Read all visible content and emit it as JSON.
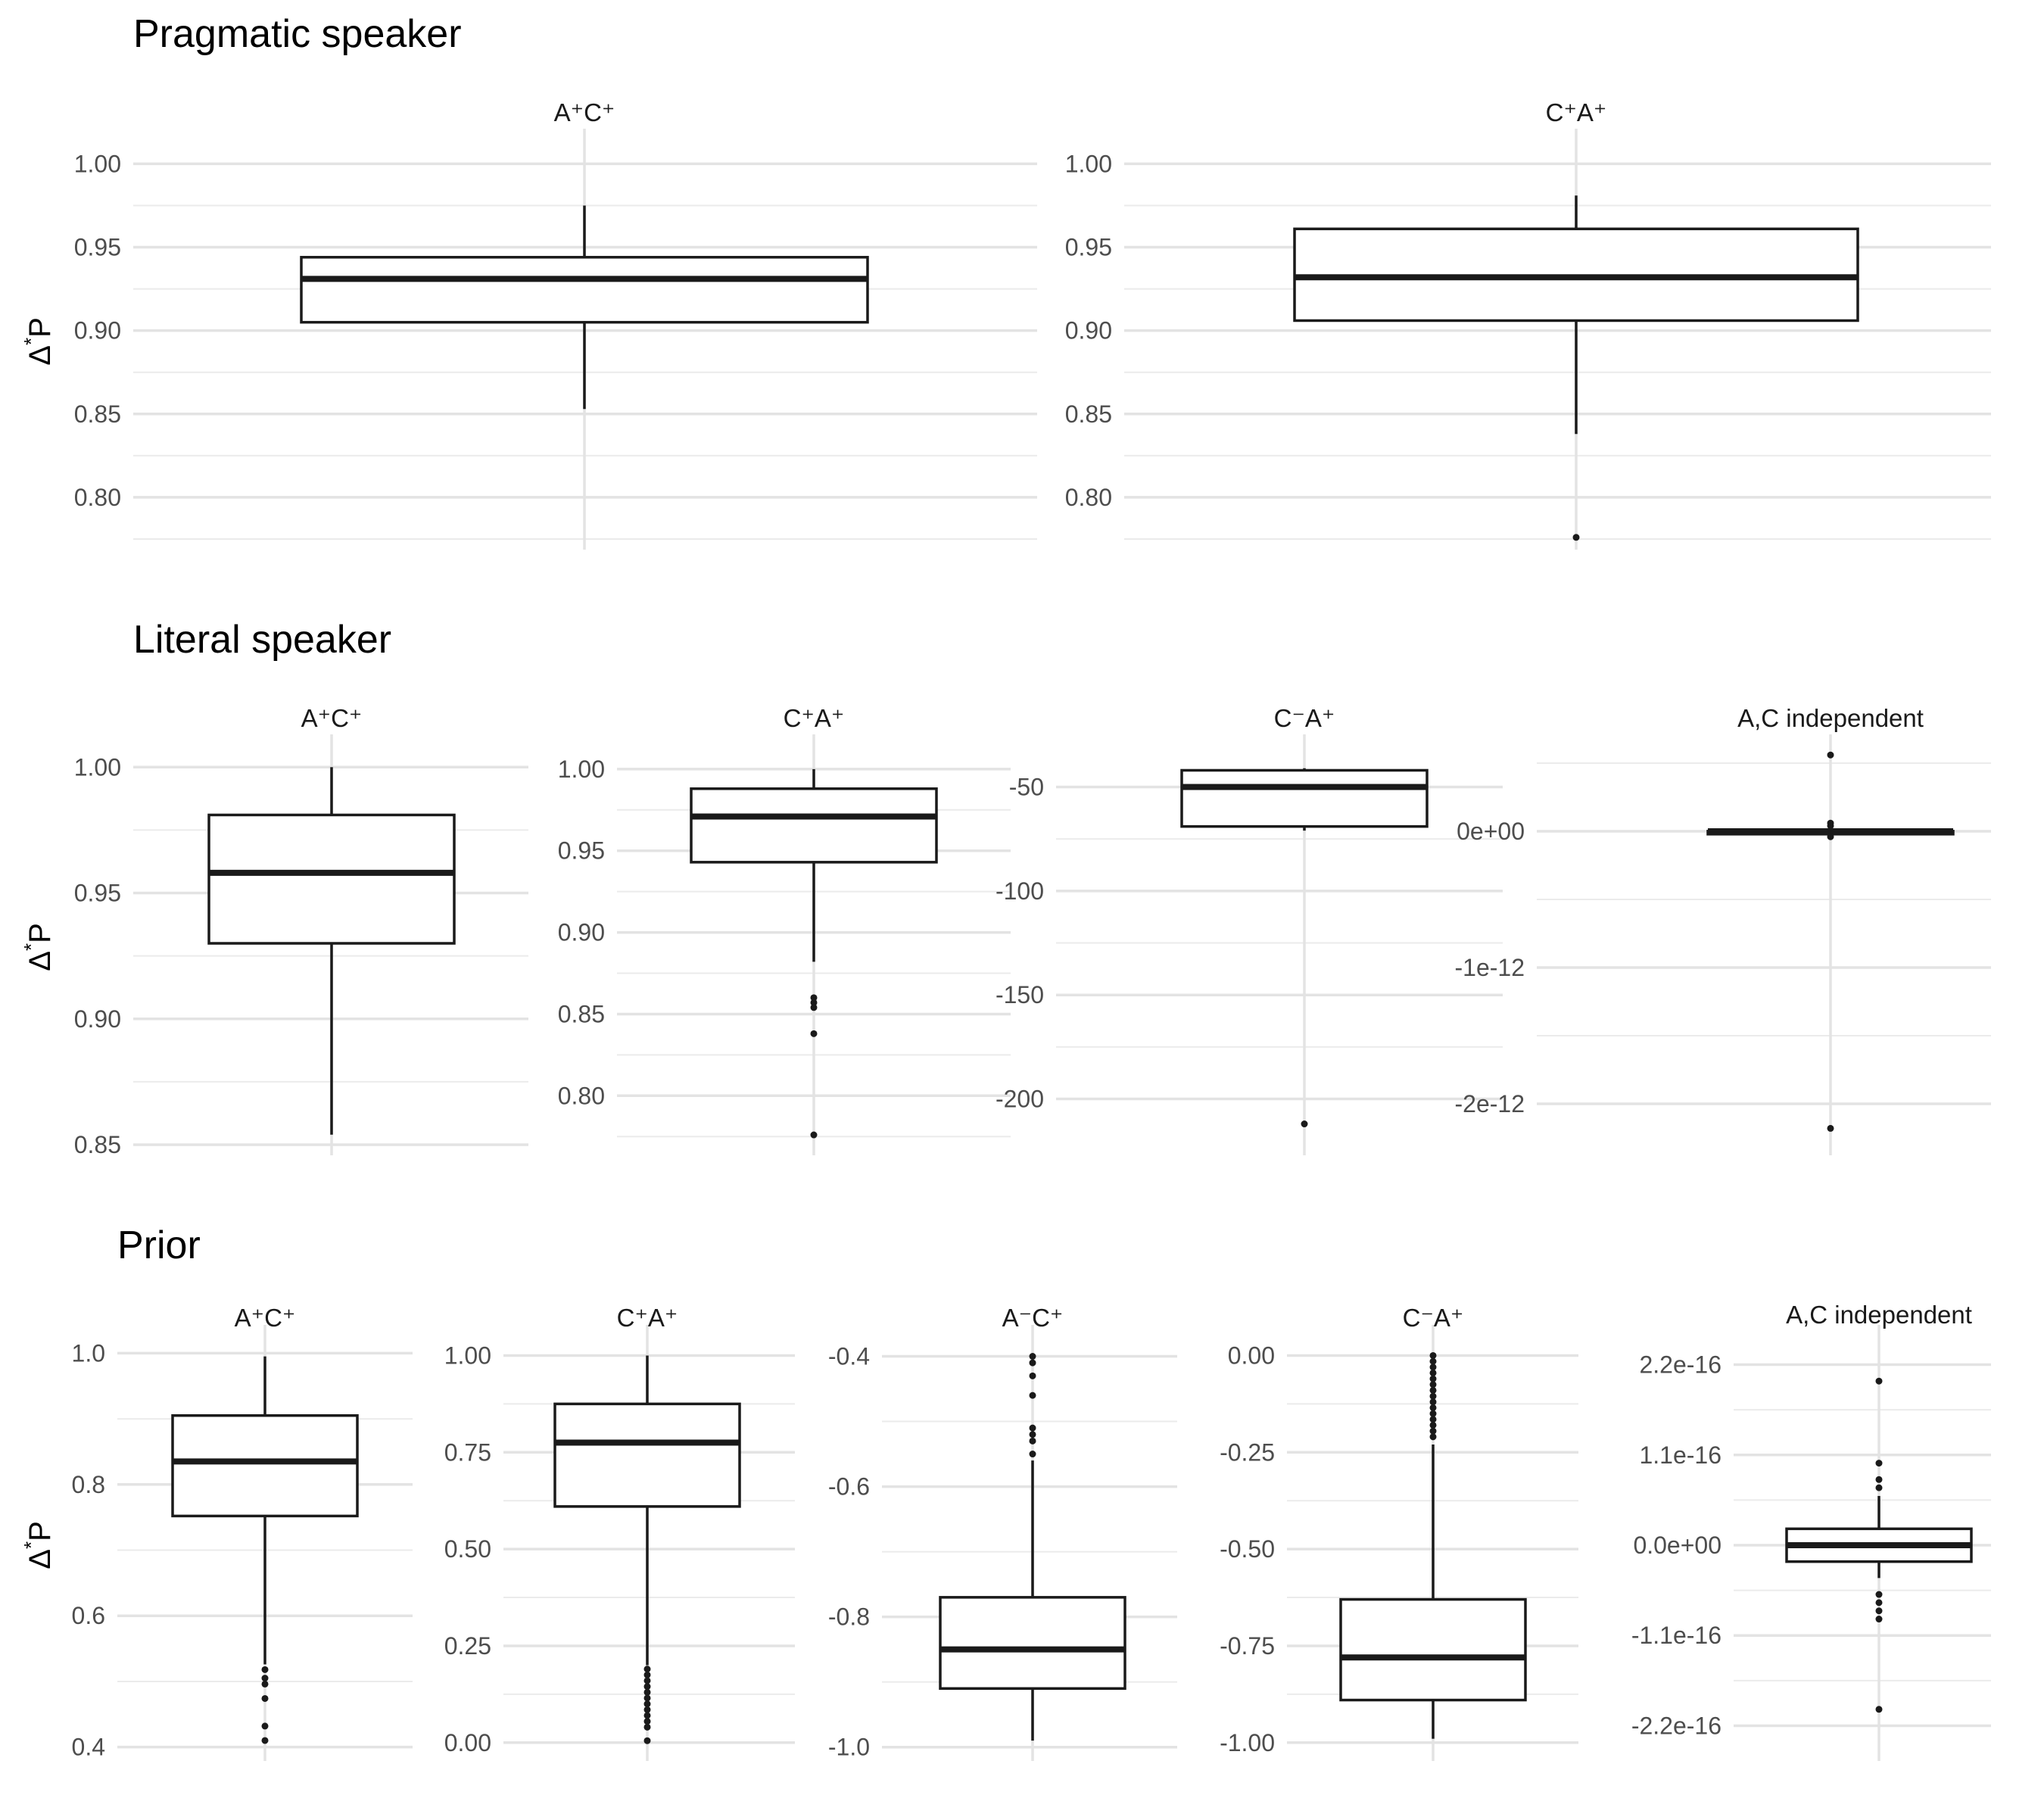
{
  "chart_data": [
    {
      "type": "box",
      "title": "Pragmatic speaker",
      "ylabel": "Δ*P",
      "panels": [
        {
          "title": "A⁺C⁺",
          "ylim": [
            0.775,
            1.012
          ],
          "ticks": [
            1.0,
            0.95,
            0.9,
            0.85,
            0.8
          ],
          "tick_labels": [
            "1.00",
            "0.95",
            "0.90",
            "0.85",
            "0.80"
          ],
          "box": {
            "whisker_low": 0.853,
            "q1": 0.905,
            "median": 0.931,
            "q3": 0.944,
            "whisker_high": 0.975
          },
          "outliers": []
        },
        {
          "title": "C⁺A⁺",
          "ylim": [
            0.775,
            1.012
          ],
          "ticks": [
            1.0,
            0.95,
            0.9,
            0.85,
            0.8
          ],
          "tick_labels": [
            "1.00",
            "0.95",
            "0.90",
            "0.85",
            "0.80"
          ],
          "box": {
            "whisker_low": 0.838,
            "q1": 0.906,
            "median": 0.932,
            "q3": 0.961,
            "whisker_high": 0.981
          },
          "outliers": [
            0.776
          ]
        }
      ]
    },
    {
      "type": "box",
      "title": "Literal speaker",
      "ylabel": "Δ*P",
      "panels": [
        {
          "title": "A⁺C⁺",
          "ylim": [
            0.85,
            1.007
          ],
          "ticks": [
            1.0,
            0.95,
            0.9,
            0.85
          ],
          "tick_labels": [
            "1.00",
            "0.95",
            "0.90",
            "0.85"
          ],
          "box": {
            "whisker_low": 0.854,
            "q1": 0.93,
            "median": 0.958,
            "q3": 0.981,
            "whisker_high": 1.0
          },
          "outliers": []
        },
        {
          "title": "C⁺A⁺",
          "ylim": [
            0.77,
            1.012
          ],
          "ticks": [
            1.0,
            0.95,
            0.9,
            0.85,
            0.8
          ],
          "tick_labels": [
            "1.00",
            "0.95",
            "0.90",
            "0.85",
            "0.80"
          ],
          "box": {
            "whisker_low": 0.882,
            "q1": 0.943,
            "median": 0.971,
            "q3": 0.988,
            "whisker_high": 1.0
          },
          "outliers": [
            0.86,
            0.857,
            0.854,
            0.838,
            0.776
          ]
        },
        {
          "title": "C⁻A⁺",
          "ylim": [
            -222,
            -32
          ],
          "ticks": [
            -50,
            -100,
            -150,
            -200
          ],
          "tick_labels": [
            "-50",
            "-100",
            "-150",
            "-200"
          ],
          "box": {
            "whisker_low": -71,
            "q1": -69,
            "median": -50,
            "q3": -42,
            "whisker_high": -41
          },
          "outliers": [
            -212
          ]
        },
        {
          "title": "A,C independent",
          "ylim": [
            -2.3e-12,
            6e-13
          ],
          "ticks": [
            0,
            -1e-12,
            -2e-12
          ],
          "tick_labels": [
            "0e+00",
            "-1e-12",
            "-2e-12"
          ],
          "box": {
            "whisker_low": -2e-15,
            "q1": -1e-15,
            "median": 0,
            "q3": 1e-15,
            "whisker_high": 2e-15
          },
          "outliers": [
            5.6e-13,
            6e-14,
            4e-14,
            -4e-14,
            -2.18e-12
          ]
        }
      ]
    },
    {
      "type": "box",
      "title": "Prior",
      "ylabel": "Δ*P",
      "panels": [
        {
          "title": "A⁺C⁺",
          "ylim": [
            0.395,
            1.02
          ],
          "ticks": [
            1.0,
            0.8,
            0.6,
            0.4
          ],
          "tick_labels": [
            "1.0",
            "0.8",
            "0.6",
            "0.4"
          ],
          "box": {
            "whisker_low": 0.526,
            "q1": 0.752,
            "median": 0.835,
            "q3": 0.905,
            "whisker_high": 0.995
          },
          "outliers": [
            0.518,
            0.505,
            0.496,
            0.474,
            0.432,
            0.41
          ]
        },
        {
          "title": "C⁺A⁺",
          "ylim": [
            -0.02,
            1.04
          ],
          "ticks": [
            1.0,
            0.75,
            0.5,
            0.25,
            0.0
          ],
          "tick_labels": [
            "1.00",
            "0.75",
            "0.50",
            "0.25",
            "0.00"
          ],
          "box": {
            "whisker_low": 0.2,
            "q1": 0.61,
            "median": 0.775,
            "q3": 0.875,
            "whisker_high": 1.0
          },
          "outliers": [
            0.19,
            0.175,
            0.16,
            0.145,
            0.13,
            0.115,
            0.1,
            0.085,
            0.07,
            0.055,
            0.04,
            0.005
          ]
        },
        {
          "title": "A⁻C⁺",
          "ylim": [
            -1.005,
            -0.375
          ],
          "ticks": [
            -0.4,
            -0.6,
            -0.8,
            -1.0
          ],
          "tick_labels": [
            "-0.4",
            "-0.6",
            "-0.8",
            "-1.0"
          ],
          "box": {
            "whisker_low": -0.99,
            "q1": -0.91,
            "median": -0.85,
            "q3": -0.77,
            "whisker_high": -0.56
          },
          "outliers": [
            -0.4,
            -0.41,
            -0.43,
            -0.46,
            -0.51,
            -0.52,
            -0.53,
            -0.55
          ]
        },
        {
          "title": "C⁻A⁺",
          "ylim": [
            -1.02,
            0.04
          ],
          "ticks": [
            0.0,
            -0.25,
            -0.5,
            -0.75,
            -1.0
          ],
          "tick_labels": [
            "0.00",
            "-0.25",
            "-0.50",
            "-0.75",
            "-1.00"
          ],
          "box": {
            "whisker_low": -0.99,
            "q1": -0.89,
            "median": -0.78,
            "q3": -0.63,
            "whisker_high": -0.23
          },
          "outliers": [
            0.0,
            -0.015,
            -0.03,
            -0.045,
            -0.06,
            -0.075,
            -0.09,
            -0.105,
            -0.12,
            -0.135,
            -0.15,
            -0.165,
            -0.18,
            -0.195,
            -0.21
          ]
        },
        {
          "title": "A,C independent",
          "ylim": [
            -2.5e-16,
            2.5e-16
          ],
          "ticks": [
            2.2e-16,
            1.1e-16,
            0,
            -1.1e-16,
            -2.2e-16
          ],
          "tick_labels": [
            "2.2e-16",
            "1.1e-16",
            "0.0e+00",
            "-1.1e-16",
            "-2.2e-16"
          ],
          "box": {
            "whisker_low": -4e-17,
            "q1": -2e-17,
            "median": 0.0,
            "q3": 2e-17,
            "whisker_high": 6e-17
          },
          "outliers": [
            2e-16,
            1e-16,
            8e-17,
            7e-17,
            -6e-17,
            -7e-17,
            -8e-17,
            -9e-17,
            -2e-16
          ]
        }
      ]
    }
  ]
}
